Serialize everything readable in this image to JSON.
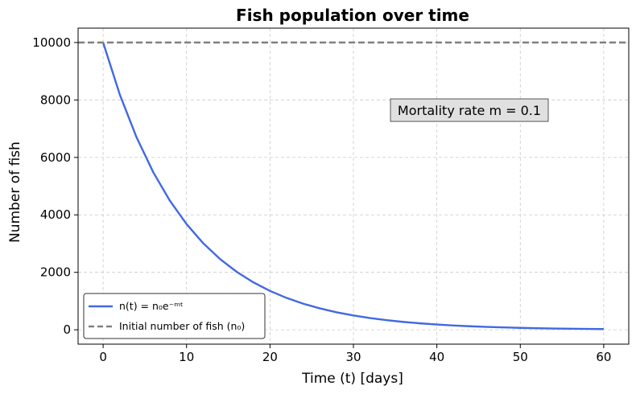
{
  "chart_data": {
    "type": "line",
    "title": "Fish population over time",
    "xlabel": "Time (t) [days]",
    "ylabel": "Number of fish",
    "xlim": [
      -3,
      63
    ],
    "ylim": [
      -500,
      10500
    ],
    "xticks": [
      0,
      10,
      20,
      30,
      40,
      50,
      60
    ],
    "yticks": [
      0,
      2000,
      4000,
      6000,
      8000,
      10000
    ],
    "grid": true,
    "legend_position": "lower-left",
    "annotation": "Mortality rate m = 0.1",
    "series": [
      {
        "name": "n(t) = n₀e⁻ᵐᵗ",
        "style": "solid",
        "color": "#4169e1",
        "x": [
          0,
          2,
          4,
          6,
          8,
          10,
          12,
          14,
          16,
          18,
          20,
          22,
          24,
          26,
          28,
          30,
          32,
          34,
          36,
          38,
          40,
          42,
          44,
          46,
          48,
          50,
          52,
          54,
          56,
          58,
          60
        ],
        "y": [
          10000,
          8187,
          6703,
          5488,
          4493,
          3679,
          3012,
          2466,
          2019,
          1653,
          1353,
          1108,
          907,
          743,
          608,
          498,
          408,
          334,
          273,
          224,
          183,
          150,
          123,
          101,
          82,
          67,
          55,
          45,
          37,
          30,
          25
        ]
      },
      {
        "name": "Initial number of fish (n₀)",
        "style": "dashed",
        "color": "#808080",
        "y_constant": 10000
      }
    ]
  }
}
